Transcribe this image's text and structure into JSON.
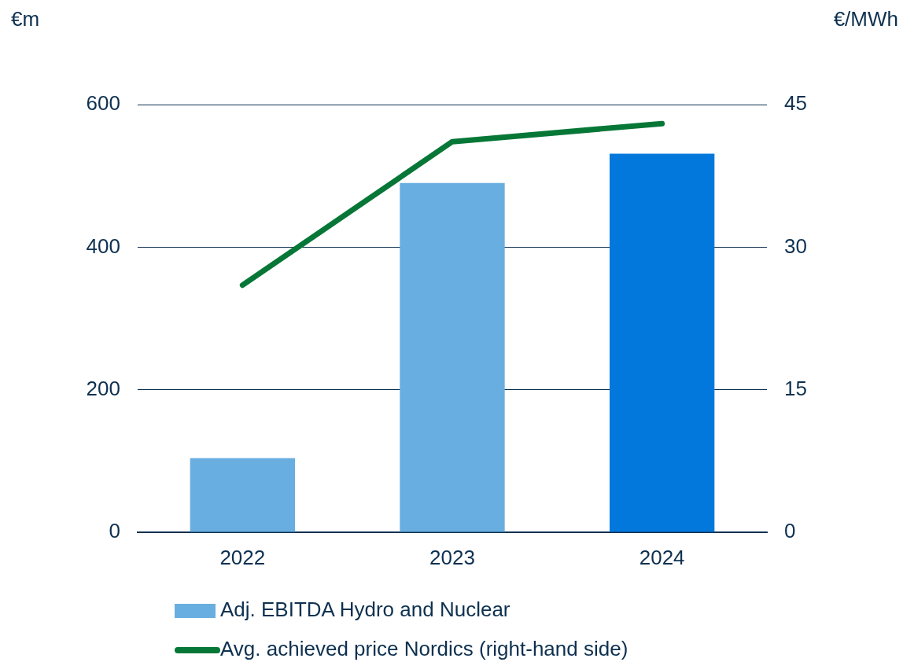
{
  "chart_data": {
    "type": "bar",
    "ylabel": "€m",
    "y2label": "€/MWh",
    "categories": [
      "2022",
      "2023",
      "2024"
    ],
    "series": [
      {
        "name": "Adj. EBITDA Hydro and Nuclear",
        "colors": [
          "#69aee0",
          "#69aee0",
          "#0278dc"
        ],
        "values": [
          104,
          490,
          531
        ]
      },
      {
        "name": "Avg. achieved price Nordics (right-hand side)",
        "type": "line",
        "axis": "y2",
        "color": "#077737",
        "values": [
          26.0,
          41.1,
          43.0
        ]
      }
    ],
    "ylim": [
      0,
      600
    ],
    "yticks": [
      0,
      200,
      400,
      600
    ],
    "y2lim": [
      0,
      45
    ],
    "y2ticks": [
      0,
      15,
      30,
      45
    ],
    "grid": "y",
    "legend": "bottom"
  }
}
